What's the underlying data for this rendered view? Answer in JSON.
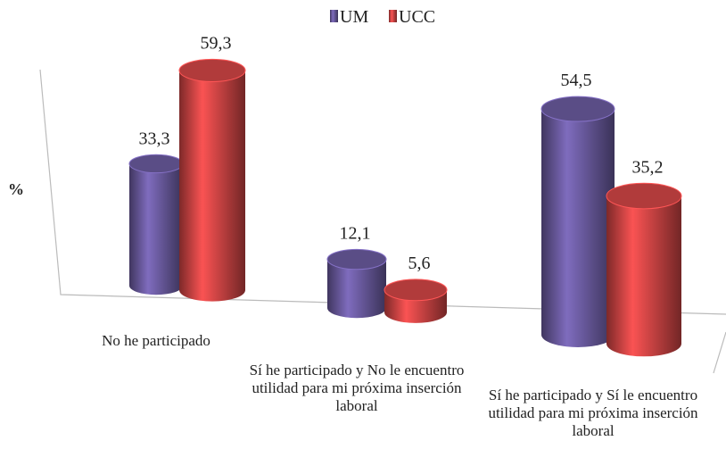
{
  "chart_data": {
    "type": "bar3d",
    "y_label": "%",
    "categories": [
      "No he participado",
      "Sí he participado y No le encuentro utilidad para mi próxima inserción laboral",
      "Sí he participado y Sí le encuentro utilidad para mi próxima inserción laboral"
    ],
    "series": [
      {
        "name": "UM",
        "color": "#6a5a9e",
        "values": [
          33.3,
          12.1,
          54.5
        ],
        "value_labels": [
          "33,3",
          "12,1",
          "54,5"
        ]
      },
      {
        "name": "UCC",
        "color": "#d04545",
        "values": [
          59.3,
          5.6,
          35.2
        ],
        "value_labels": [
          "59,3",
          "5,6",
          "35,2"
        ]
      }
    ],
    "legend": "top"
  }
}
